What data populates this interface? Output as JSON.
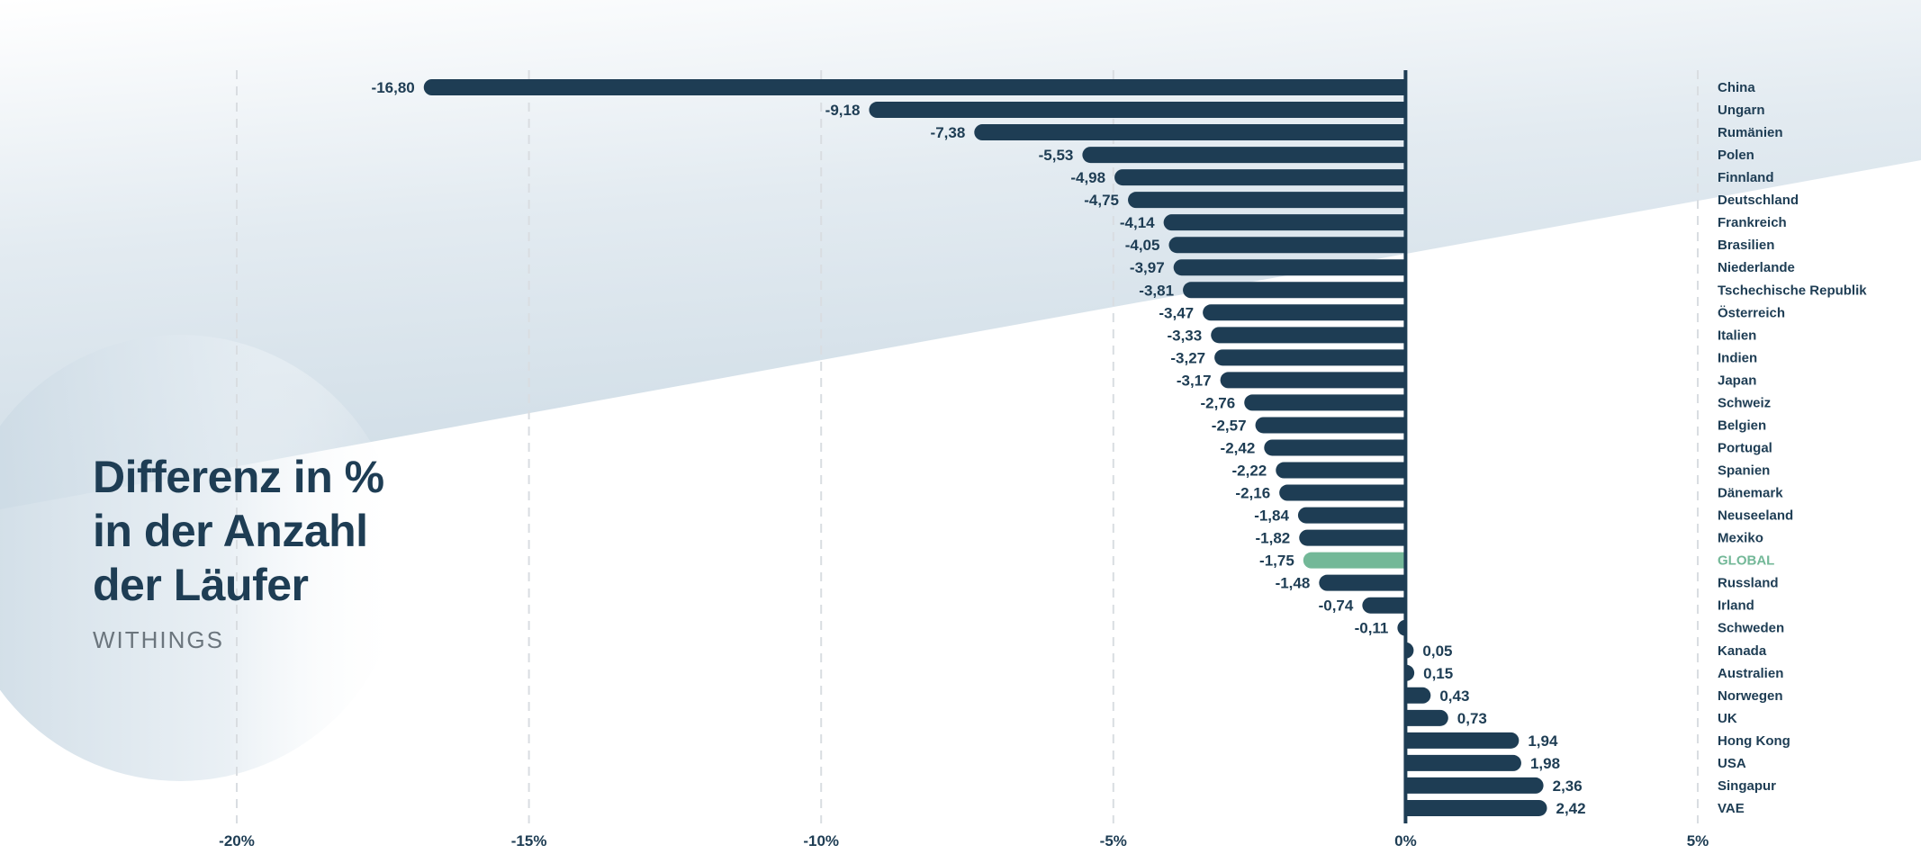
{
  "title": {
    "lines": [
      "Differenz in %",
      "in der Anzahl",
      "der Läufer"
    ],
    "brand": "WITHINGS"
  },
  "colors": {
    "bar": "#1e3d54",
    "highlight": "#73b898",
    "text": "#1e3d54",
    "highlight_text": "#73b898",
    "grid": "#d9dde1",
    "bg_shape": "#d6e1e9",
    "brand_text": "#6b757d"
  },
  "chart_data": {
    "type": "bar",
    "orientation": "horizontal",
    "title": "Differenz in % in der Anzahl der Läufer",
    "subtitle": "WITHINGS",
    "xlabel": "",
    "ylabel": "",
    "xlim": [
      -20,
      5
    ],
    "grid": true,
    "decimal_separator": ",",
    "x_ticks": [
      -20,
      -15,
      -10,
      -5,
      0,
      5
    ],
    "x_tick_labels": [
      "-20%",
      "-15%",
      "-10%",
      "-5%",
      "0%",
      "5%"
    ],
    "highlight_category": "GLOBAL",
    "categories": [
      "China",
      "Ungarn",
      "Rumänien",
      "Polen",
      "Finnland",
      "Deutschland",
      "Frankreich",
      "Brasilien",
      "Niederlande",
      "Tschechische Republik",
      "Österreich",
      "Italien",
      "Indien",
      "Japan",
      "Schweiz",
      "Belgien",
      "Portugal",
      "Spanien",
      "Dänemark",
      "Neuseeland",
      "Mexiko",
      "GLOBAL",
      "Russland",
      "Irland",
      "Schweden",
      "Kanada",
      "Australien",
      "Norwegen",
      "UK",
      "Hong Kong",
      "USA",
      "Singapur",
      "VAE"
    ],
    "values": [
      -16.8,
      -9.18,
      -7.38,
      -5.53,
      -4.98,
      -4.75,
      -4.14,
      -4.05,
      -3.97,
      -3.81,
      -3.47,
      -3.33,
      -3.27,
      -3.17,
      -2.76,
      -2.57,
      -2.42,
      -2.22,
      -2.16,
      -1.84,
      -1.82,
      -1.75,
      -1.48,
      -0.74,
      -0.11,
      0.05,
      0.15,
      0.43,
      0.73,
      1.94,
      1.98,
      2.36,
      2.42
    ],
    "value_labels": [
      "-16,80",
      "-9,18",
      "-7,38",
      "-5,53",
      "-4,98",
      "-4,75",
      "-4,14",
      "-4,05",
      "-3,97",
      "-3,81",
      "-3,47",
      "-3,33",
      "-3,27",
      "-3,17",
      "-2,76",
      "-2,57",
      "-2,42",
      "-2,22",
      "-2,16",
      "-1,84",
      "-1,82",
      "-1,75",
      "-1,48",
      "-0,74",
      "-0,11",
      "0,05",
      "0,15",
      "0,43",
      "0,73",
      "1,94",
      "1,98",
      "2,36",
      "2,42"
    ]
  }
}
